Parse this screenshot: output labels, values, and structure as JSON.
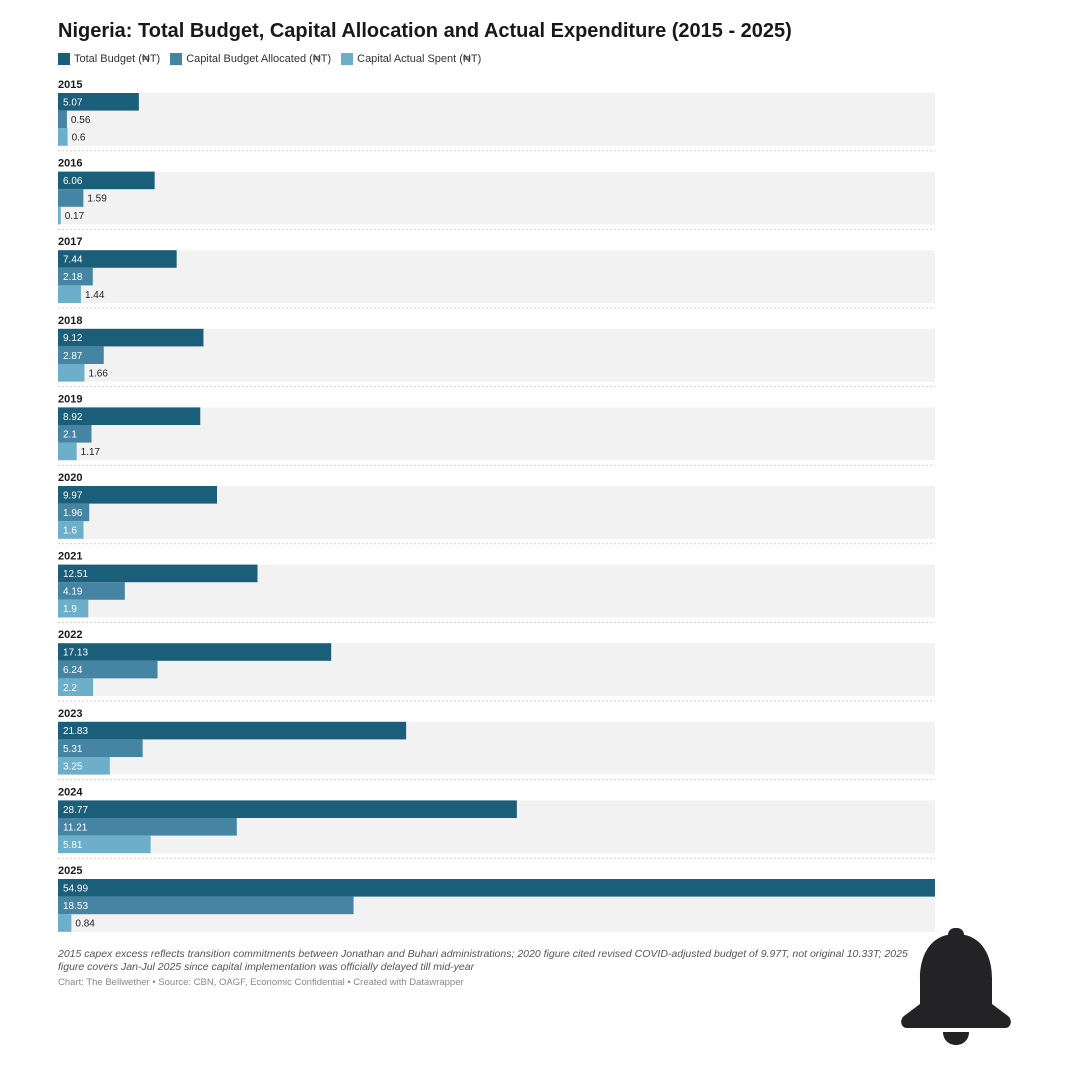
{
  "chart_data": {
    "type": "bar",
    "orientation": "horizontal-grouped",
    "title": "Nigeria: Total Budget, Capital Allocation and Actual Expenditure (2015 - 2025)",
    "categories": [
      "2015",
      "2016",
      "2017",
      "2018",
      "2019",
      "2020",
      "2021",
      "2022",
      "2023",
      "2024",
      "2025"
    ],
    "series": [
      {
        "name": "Total Budget (₦T)",
        "color": "#1a5e79",
        "values": [
          5.07,
          6.06,
          7.44,
          9.12,
          8.92,
          9.97,
          12.51,
          17.13,
          21.83,
          28.77,
          54.99
        ]
      },
      {
        "name": "Capital Budget Allocated (₦T)",
        "color": "#4585a3",
        "values": [
          0.56,
          1.59,
          2.18,
          2.87,
          2.1,
          1.96,
          4.19,
          6.24,
          5.31,
          11.21,
          18.53
        ]
      },
      {
        "name": "Capital Actual Spent (₦T)",
        "color": "#6dafcb",
        "values": [
          0.6,
          0.17,
          1.44,
          1.66,
          1.17,
          1.6,
          1.9,
          2.2,
          3.25,
          5.81,
          0.84
        ]
      }
    ],
    "xlim": [
      0,
      54.99
    ],
    "xlabel": "",
    "ylabel": "",
    "legend": "top-left",
    "grid": false
  },
  "footnote": "2015 capex excess reflects transition commitments between Jonathan and Buhari administrations; 2020 figure cited revised COVID-adjusted budget of 9.97T, not original 10.33T; 2025 figure covers Jan-Jul 2025 since capital implementation was officially delayed till mid-year",
  "credits": "Chart: The Bellwether • Source: CBN, OAGF, Economic Confidential  • Created with Datawrapper",
  "colors": {
    "panel_background": "#f2f2f2",
    "dark_label": "#222222",
    "light_label": "#ffffff",
    "bell": "#232326"
  },
  "icons": {
    "notification": "bell-icon"
  }
}
